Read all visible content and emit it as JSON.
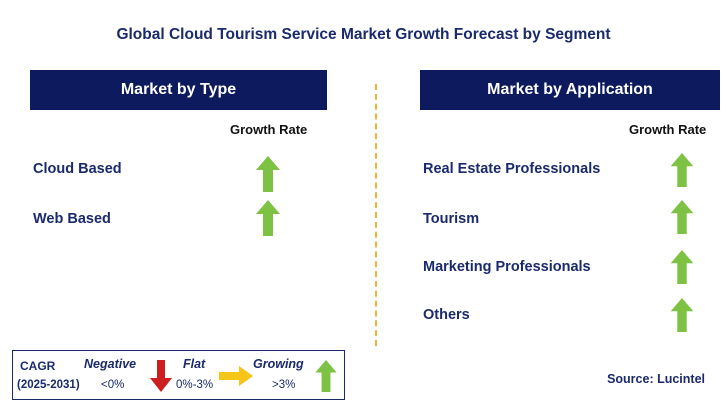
{
  "title": "Global Cloud Tourism Service Market Growth Forecast by Segment",
  "left_panel": {
    "header": "Market by Type",
    "growth_rate_label": "Growth Rate",
    "items": [
      {
        "label": "Cloud Based",
        "trend": "growing"
      },
      {
        "label": "Web Based",
        "trend": "growing"
      }
    ]
  },
  "right_panel": {
    "header": "Market by Application",
    "growth_rate_label": "Growth Rate",
    "items": [
      {
        "label": "Real Estate Professionals",
        "trend": "growing"
      },
      {
        "label": "Tourism",
        "trend": "growing"
      },
      {
        "label": "Marketing Professionals",
        "trend": "growing"
      },
      {
        "label": "Others",
        "trend": "growing"
      }
    ]
  },
  "legend": {
    "cagr_label": "CAGR",
    "period": "(2025-2031)",
    "negative_label": "Negative",
    "negative_range": "<0%",
    "flat_label": "Flat",
    "flat_range": "0%-3%",
    "growing_label": "Growing",
    "growing_range": ">3%"
  },
  "source": "Source: Lucintel",
  "colors": {
    "banner": "#0d1b5e",
    "text": "#1a2a6c",
    "up_arrow": "#7dc242",
    "down_arrow": "#cc1f1f",
    "flat_arrow": "#f5c518",
    "divider": "#f2b233"
  },
  "icons": {
    "growing": "green-up-arrow-icon",
    "negative": "red-down-arrow-icon",
    "flat": "yellow-right-arrow-icon"
  }
}
